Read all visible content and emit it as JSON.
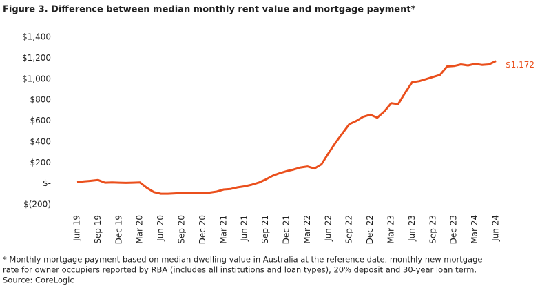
{
  "chart_data": {
    "type": "line",
    "title": "Figure 3. Difference between median monthly rent value and mortgage payment*",
    "categories": [
      "Jun 19",
      null,
      null,
      "Sep 19",
      null,
      null,
      "Dec 19",
      null,
      null,
      "Mar 20",
      null,
      null,
      "Jun 20",
      null,
      null,
      "Sep 20",
      null,
      null,
      "Dec 20",
      null,
      null,
      "Mar 21",
      null,
      null,
      "Jun 21",
      null,
      null,
      "Sep 21",
      null,
      null,
      "Dec 21",
      null,
      null,
      "Mar 22",
      null,
      null,
      "Jun 22",
      null,
      null,
      "Sep 22",
      null,
      null,
      "Dec 22",
      null,
      null,
      "Mar 23",
      null,
      null,
      "Jun 23",
      null,
      null,
      "Sep 23",
      null,
      null,
      "Dec 23",
      null,
      null,
      "Mar 24",
      null,
      null,
      "Jun 24"
    ],
    "series": [
      {
        "name": "Difference",
        "color": "#ea4f1c",
        "values": [
          15,
          22,
          28,
          35,
          10,
          12,
          10,
          8,
          10,
          12,
          -40,
          -80,
          -95,
          -95,
          -92,
          -88,
          -88,
          -85,
          -88,
          -85,
          -75,
          -55,
          -50,
          -35,
          -25,
          -10,
          10,
          40,
          75,
          100,
          120,
          135,
          155,
          165,
          145,
          185,
          290,
          390,
          480,
          570,
          600,
          640,
          660,
          630,
          690,
          770,
          760,
          870,
          970,
          980,
          1000,
          1020,
          1040,
          1120,
          1125,
          1140,
          1130,
          1145,
          1135,
          1140,
          1172
        ],
        "value_labels": [
          null,
          null,
          null,
          null,
          null,
          null,
          null,
          null,
          null,
          null,
          null,
          null,
          null,
          null,
          null,
          null,
          null,
          null,
          null,
          null,
          null,
          null,
          null,
          null,
          null,
          null,
          null,
          null,
          null,
          null,
          null,
          null,
          null,
          null,
          null,
          null,
          null,
          null,
          null,
          null,
          null,
          null,
          null,
          null,
          null,
          null,
          null,
          null,
          null,
          null,
          null,
          null,
          null,
          null,
          null,
          null,
          null,
          null,
          null,
          null,
          "$1,172"
        ]
      }
    ],
    "ylim": [
      -200,
      1400
    ],
    "yticks": [
      {
        "value": -200,
        "label": "$(200)"
      },
      {
        "value": 0,
        "label": "$-"
      },
      {
        "value": 200,
        "label": "$200"
      },
      {
        "value": 400,
        "label": "$400"
      },
      {
        "value": 600,
        "label": "$600"
      },
      {
        "value": 800,
        "label": "$800"
      },
      {
        "value": 1000,
        "label": "$1,000"
      },
      {
        "value": 1200,
        "label": "$1,200"
      },
      {
        "value": 1400,
        "label": "$1,400"
      }
    ],
    "grid": false,
    "footnotes": [
      "* Monthly mortgage payment based on median dwelling value in Australia at the reference date, monthly new mortgage",
      "rate for owner occupiers reported by RBA (includes all institutions and loan types), 20% deposit and 30-year loan term.",
      "Source: CoreLogic"
    ]
  }
}
